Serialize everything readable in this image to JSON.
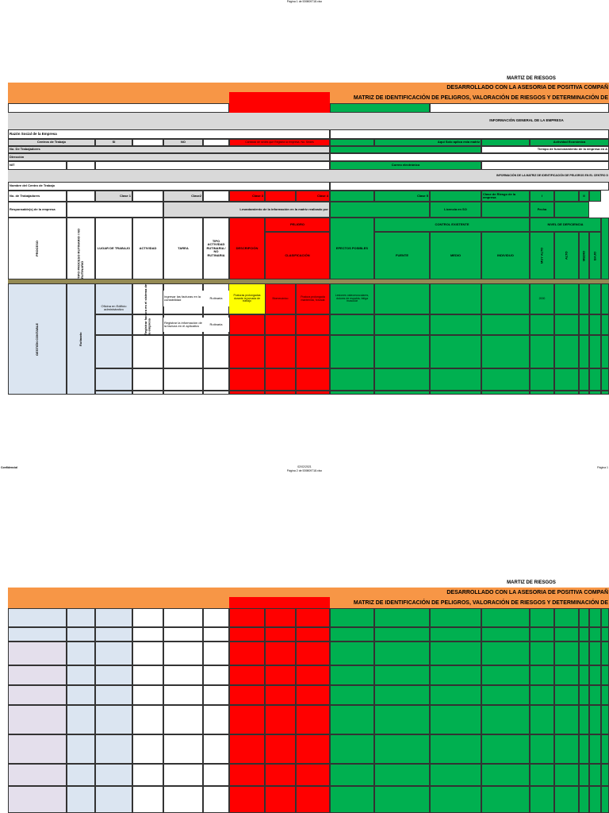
{
  "page1": {
    "top_caption": "Página 1 de 539809718.xlsx",
    "risk_title": "MARTIZ DE RIESGOS",
    "advisory": "DESARROLLADO CON LA ASESORIA DE POSITIVA COMPAÑ",
    "matrix_title": "MATRIZ DE IDENTIFICACIÓN DE PELIGROS, VALORACIÓN DE RIESGOS Y DETERMINACIÓN DE",
    "general_info": "INFORMACIÓN GENERAL DE LA EMPRESA",
    "company_name": "Razón Social de la Empresa",
    "work_centers": "Centros de Trabajo",
    "yes": "SI",
    "no": "NO",
    "sites": "Cantidad de sedes que Registra la empresa. No. Sedes",
    "applies": "Aqui Solo aplica esta matriz",
    "economic_activity": "Actividad Económica",
    "workers": "No. De Trabajadores",
    "operating_time": "Tiempo de funcionamiento de la empresa en A",
    "address": "Dirección",
    "nit": "NIT",
    "email": "Correo electrónico",
    "matrix_info": "INFORMACIÓN DE LA MATRIZ DE IDENTIFICACIÓN DE PELIGROS EN EL CENTRO D",
    "center_name": "Nombre del Centro de Trabajo",
    "center_workers": "No. de Trabajadores",
    "class1": "Clase 1",
    "class2": "Clase2",
    "class3": "Clase 3",
    "class4": "Clase 4",
    "class5": "Clase 5",
    "risk_class": "Clase de Riesgo de la empresa",
    "level1": "I",
    "level2": "II",
    "responsible": "Responsable(s) de la empresa",
    "survey": "Levantamiento de la información en la matriz realizado por",
    "license": "Licencia en SO",
    "date": "Fecha",
    "headers": {
      "process": "PROCESO",
      "process_type": "TIPO PROCESO RUTINARIO / NO RUTINARIO",
      "workplace": "LUGAR DE TRABAJO",
      "activity": "ACTIVIDAD",
      "task": "TAREA",
      "activity_type": "TIPO ACTIVIDAD RUTINARIA / NO RUTINARIA",
      "description": "DESCRIPCIÓN",
      "hazard": "PELIGRO",
      "classification": "CLASIFICACIÓN",
      "effects": "EFECTOS POSIBLES",
      "existing_control": "CONTROL EXISTENTE",
      "source": "FUENTE",
      "medium": "MEDIO",
      "individual": "INDIVIDUO",
      "deficiency": "NIVEL DE DEFICIENCIA",
      "very_high": "MUY ALTO",
      "high": "ALTO",
      "mid": "MEDIO",
      "low": "BAJO"
    },
    "body": {
      "process": "GESTIÓN CONTABLE",
      "process_type": "Rutinario",
      "workplace": "Oficina en Edificio administrativo",
      "activity": "Registrar factura en el sistema de la empresa",
      "task1": "Ingresar las facturas en la contabilidad",
      "task1_type": "Rutinaria",
      "task2": "Registrar la información de la factura en el aplicativo",
      "task2_type": "Rutinaria",
      "description": "Posturas prolongadas durante la jornada de trabajo",
      "hazard": "Biomecánico",
      "classification": "Postura prolongada mantenida, forzada",
      "effects": "Lesiones osteomusculares, dolores de espalda, fatiga muscular",
      "very_high": "2000"
    },
    "footer_left": "Confidencial",
    "footer_date": "02/02/2021",
    "footer_page_caption": "Página 2 de 539809718.xlsx",
    "footer_right": "Página 1"
  },
  "page2": {
    "risk_title": "MARTIZ DE RIESGOS",
    "advisory": "DESARROLLADO CON LA ASESORIA DE POSITIVA COMPAÑ",
    "matrix_title": "MATRIZ DE IDENTIFICACIÓN DE PELIGROS, VALORACIÓN DE RIESGOS Y DETERMINACIÓN DE"
  }
}
